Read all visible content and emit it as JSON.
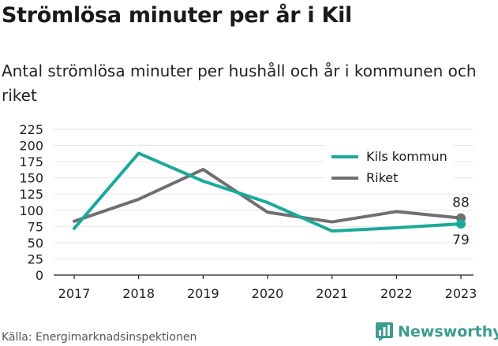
{
  "header": {
    "title": "Strömlösa minuter per år i Kil",
    "subtitle": "Antal strömlösa minuter per hushåll och år i kommunen och riket"
  },
  "footer": {
    "source": "Källa: Energimarknadsinspektionen",
    "brand": "Newsworthy",
    "brand_icon": "bar-chart-icon"
  },
  "colors": {
    "kil": "#1ba99a",
    "riket": "#6f6f72",
    "grid": "#e6e6e6",
    "axis": "#222222",
    "brand": "#3c9c8f"
  },
  "chart_data": {
    "type": "line",
    "x": [
      "2017",
      "2018",
      "2019",
      "2020",
      "2021",
      "2022",
      "2023"
    ],
    "yticks": [
      "0",
      "25",
      "50",
      "75",
      "100",
      "125",
      "150",
      "175",
      "200",
      "225"
    ],
    "ylim": [
      0,
      225
    ],
    "grid": true,
    "legend_placement": "top-right",
    "series": [
      {
        "name": "Kils kommun",
        "values": [
          72,
          188,
          145,
          112,
          68,
          73,
          79
        ],
        "end_label": "79",
        "color_key": "kil"
      },
      {
        "name": "Riket",
        "values": [
          83,
          117,
          163,
          97,
          82,
          98,
          88
        ],
        "end_label": "88",
        "color_key": "riket"
      }
    ]
  }
}
